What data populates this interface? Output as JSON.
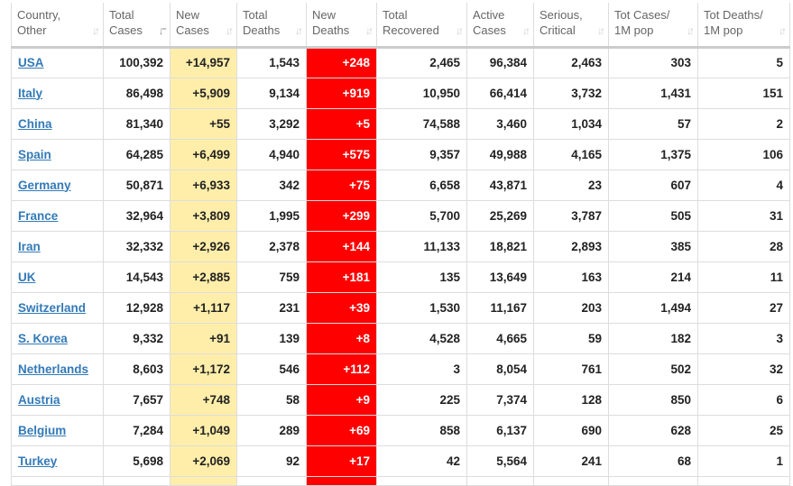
{
  "colors": {
    "new_cases_bg": "#ffeeaa",
    "new_deaths_bg": "#ff0000",
    "link": "#337ab7"
  },
  "headers": [
    {
      "l1": "Country,",
      "l2": "Other",
      "sort": "sort-icon"
    },
    {
      "l1": "Total",
      "l2": "Cases",
      "sort": "sort-desc-icon"
    },
    {
      "l1": "New",
      "l2": "Cases",
      "sort": "sort-icon"
    },
    {
      "l1": "Total",
      "l2": "Deaths",
      "sort": "sort-icon"
    },
    {
      "l1": "New",
      "l2": "Deaths",
      "sort": "sort-icon"
    },
    {
      "l1": "Total",
      "l2": "Recovered",
      "sort": "sort-icon"
    },
    {
      "l1": "Active",
      "l2": "Cases",
      "sort": "sort-icon"
    },
    {
      "l1": "Serious,",
      "l2": "Critical",
      "sort": "sort-icon"
    },
    {
      "l1": "Tot Cases/",
      "l2": "1M pop",
      "sort": "sort-icon"
    },
    {
      "l1": "Tot Deaths/",
      "l2": "1M pop",
      "sort": "sort-icon"
    }
  ],
  "rows": [
    [
      "USA",
      "100,392",
      "+14,957",
      "1,543",
      "+248",
      "2,465",
      "96,384",
      "2,463",
      "303",
      "5"
    ],
    [
      "Italy",
      "86,498",
      "+5,909",
      "9,134",
      "+919",
      "10,950",
      "66,414",
      "3,732",
      "1,431",
      "151"
    ],
    [
      "China",
      "81,340",
      "+55",
      "3,292",
      "+5",
      "74,588",
      "3,460",
      "1,034",
      "57",
      "2"
    ],
    [
      "Spain",
      "64,285",
      "+6,499",
      "4,940",
      "+575",
      "9,357",
      "49,988",
      "4,165",
      "1,375",
      "106"
    ],
    [
      "Germany",
      "50,871",
      "+6,933",
      "342",
      "+75",
      "6,658",
      "43,871",
      "23",
      "607",
      "4"
    ],
    [
      "France",
      "32,964",
      "+3,809",
      "1,995",
      "+299",
      "5,700",
      "25,269",
      "3,787",
      "505",
      "31"
    ],
    [
      "Iran",
      "32,332",
      "+2,926",
      "2,378",
      "+144",
      "11,133",
      "18,821",
      "2,893",
      "385",
      "28"
    ],
    [
      "UK",
      "14,543",
      "+2,885",
      "759",
      "+181",
      "135",
      "13,649",
      "163",
      "214",
      "11"
    ],
    [
      "Switzerland",
      "12,928",
      "+1,117",
      "231",
      "+39",
      "1,530",
      "11,167",
      "203",
      "1,494",
      "27"
    ],
    [
      "S. Korea",
      "9,332",
      "+91",
      "139",
      "+8",
      "4,528",
      "4,665",
      "59",
      "182",
      "3"
    ],
    [
      "Netherlands",
      "8,603",
      "+1,172",
      "546",
      "+112",
      "3",
      "8,054",
      "761",
      "502",
      "32"
    ],
    [
      "Austria",
      "7,657",
      "+748",
      "58",
      "+9",
      "225",
      "7,374",
      "128",
      "850",
      "6"
    ],
    [
      "Belgium",
      "7,284",
      "+1,049",
      "289",
      "+69",
      "858",
      "6,137",
      "690",
      "628",
      "25"
    ],
    [
      "Turkey",
      "5,698",
      "+2,069",
      "92",
      "+17",
      "42",
      "5,564",
      "241",
      "68",
      "1"
    ]
  ]
}
